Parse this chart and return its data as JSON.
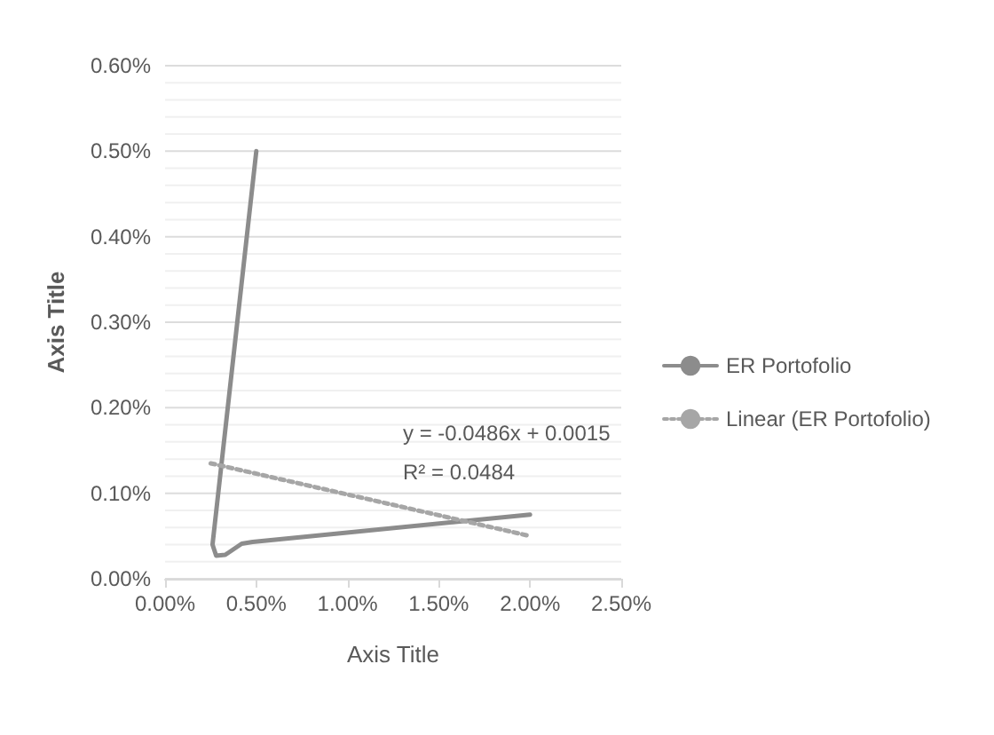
{
  "chart_data": {
    "type": "line",
    "xlabel": "Axis Title",
    "ylabel": "Axis Title",
    "annotations": [
      "y = -0.0486x + 0.0015",
      "R² = 0.0484"
    ],
    "series": [
      {
        "name": "ER Portofolio",
        "color": "#8c8c8c",
        "x": [
          0.005,
          0.0026,
          0.0028,
          0.0033,
          0.0042,
          0.0048,
          0.02
        ],
        "values": [
          0.005,
          0.0004,
          0.00027,
          0.00028,
          0.00041,
          0.00043,
          0.00075
        ],
        "line_style": "solid"
      },
      {
        "name": "Linear (ER Portofolio)",
        "color": "#a6a6a6",
        "x": [
          0.0025,
          0.02
        ],
        "values": [
          0.00135,
          0.0005
        ],
        "line_style": "dotted"
      }
    ],
    "xlim": [
      0,
      0.025
    ],
    "xticks": [
      {
        "value": 0,
        "label": "0.00%"
      },
      {
        "value": 0.005,
        "label": "0.50%"
      },
      {
        "value": 0.01,
        "label": "1.00%"
      },
      {
        "value": 0.015,
        "label": "1.50%"
      },
      {
        "value": 0.02,
        "label": "2.00%"
      },
      {
        "value": 0.025,
        "label": "2.50%"
      }
    ],
    "ylim": [
      0,
      0.006
    ],
    "yticks": [
      {
        "value": 0,
        "label": "0.00%"
      },
      {
        "value": 0.0002,
        "label": null
      },
      {
        "value": 0.0004,
        "label": null
      },
      {
        "value": 0.0006,
        "label": null
      },
      {
        "value": 0.0008,
        "label": null
      },
      {
        "value": 0.001,
        "label": "0.10%"
      },
      {
        "value": 0.0012,
        "label": null
      },
      {
        "value": 0.0014,
        "label": null
      },
      {
        "value": 0.0016,
        "label": null
      },
      {
        "value": 0.0018,
        "label": null
      },
      {
        "value": 0.002,
        "label": "0.20%"
      },
      {
        "value": 0.0022,
        "label": null
      },
      {
        "value": 0.0024,
        "label": null
      },
      {
        "value": 0.0026,
        "label": null
      },
      {
        "value": 0.0028,
        "label": null
      },
      {
        "value": 0.003,
        "label": "0.30%"
      },
      {
        "value": 0.0032,
        "label": null
      },
      {
        "value": 0.0034,
        "label": null
      },
      {
        "value": 0.0036,
        "label": null
      },
      {
        "value": 0.0038,
        "label": null
      },
      {
        "value": 0.004,
        "label": "0.40%"
      },
      {
        "value": 0.0042,
        "label": null
      },
      {
        "value": 0.0044,
        "label": null
      },
      {
        "value": 0.0046,
        "label": null
      },
      {
        "value": 0.0048,
        "label": null
      },
      {
        "value": 0.005,
        "label": "0.50%"
      },
      {
        "value": 0.0052,
        "label": null
      },
      {
        "value": 0.0054,
        "label": null
      },
      {
        "value": 0.0056,
        "label": null
      },
      {
        "value": 0.0058,
        "label": null
      },
      {
        "value": 0.006,
        "label": "0.60%"
      }
    ],
    "grid": "y",
    "legend": "right",
    "marker": "none"
  }
}
